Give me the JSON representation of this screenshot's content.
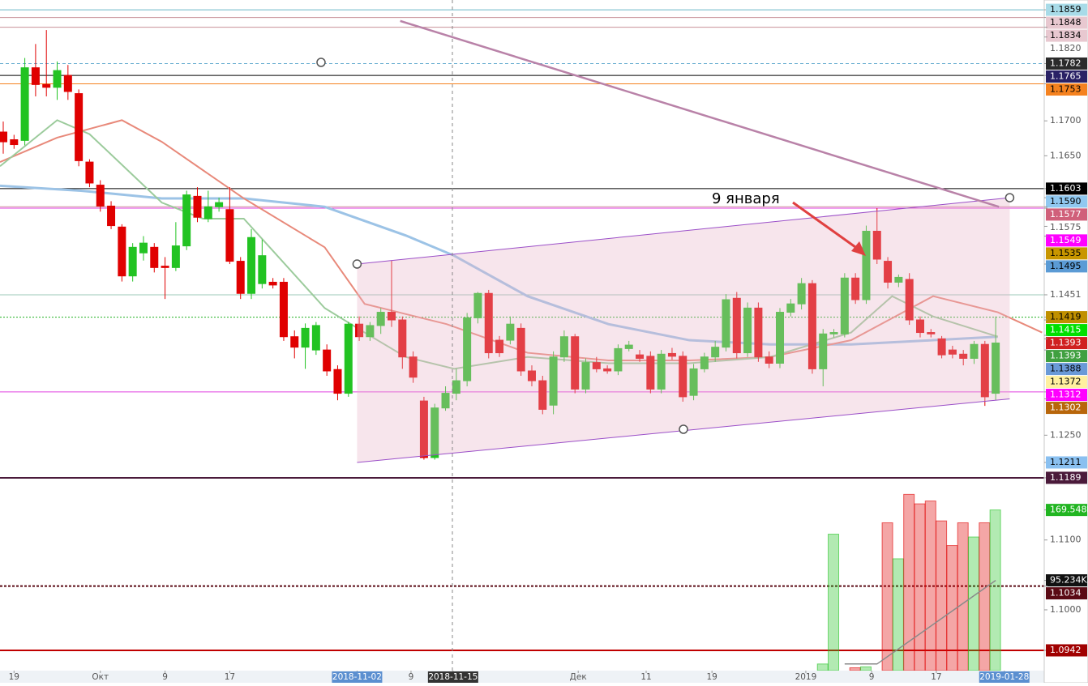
{
  "chart_data": {
    "type": "candlestick",
    "annotation": "9 января",
    "xlim": [
      -0.3,
      96.5
    ],
    "ylim": [
      1.0913,
      1.1873
    ],
    "up_color": "#22c322",
    "down_color": "#e00000",
    "xticks": [
      {
        "value": 1,
        "label": "19"
      },
      {
        "value": 9,
        "label": "Окт"
      },
      {
        "value": 15,
        "label": "9"
      },
      {
        "value": 21,
        "label": "17"
      },
      {
        "value": 32.8,
        "label": "2018-11-02",
        "bg": "#5b8fd0"
      },
      {
        "value": 37.8,
        "label": "9"
      },
      {
        "value": 41.7,
        "label": "2018-11-15",
        "bg": "#333333"
      },
      {
        "value": 53.3,
        "label": "Дек"
      },
      {
        "value": 59.6,
        "label": "11"
      },
      {
        "value": 65.7,
        "label": "19"
      },
      {
        "value": 74.4,
        "label": "2019"
      },
      {
        "value": 80.5,
        "label": "9"
      },
      {
        "value": 86.5,
        "label": "17"
      },
      {
        "value": 92.8,
        "label": "2019-01-28",
        "bg": "#5b8fd0"
      }
    ],
    "yticks": [
      {
        "value": 1.182,
        "label": "1.1820"
      },
      {
        "value": 1.17,
        "label": "1.1700"
      },
      {
        "value": 1.165,
        "label": "1.1650"
      },
      {
        "value": 1.125,
        "label": "1.1250"
      },
      {
        "value": 1.11,
        "label": "1.1100"
      },
      {
        "value": 1.1,
        "label": "1.1000"
      }
    ],
    "candles": {
      "open": [
        1.1684,
        1.1673,
        1.1672,
        1.1776,
        1.1752,
        1.1748,
        1.1765,
        1.1739,
        1.1641,
        1.1608,
        1.1578,
        1.1548,
        1.1478,
        1.1511,
        1.1519,
        1.1492,
        1.149,
        1.1521,
        1.1592,
        1.156,
        1.1577,
        1.1573,
        1.1499,
        1.1453,
        1.1467,
        1.1469,
        1.1469,
        1.1391,
        1.1376,
        1.1372,
        1.1372,
        1.1344,
        1.131,
        1.1409,
        1.1391,
        1.1407,
        1.1426,
        1.1415,
        1.1362,
        1.1299,
        1.1218,
        1.1289,
        1.131,
        1.1328,
        1.1418,
        1.1453,
        1.1386,
        1.1386,
        1.1403,
        1.1342,
        1.1328,
        1.1293,
        1.1362,
        1.1391,
        1.1316,
        1.1354,
        1.1345,
        1.1342,
        1.1374,
        1.1365,
        1.1363,
        1.1316,
        1.1367,
        1.1363,
        1.1307,
        1.1345,
        1.1362,
        1.1376,
        1.1446,
        1.1368,
        1.1432,
        1.1362,
        1.1353,
        1.1426,
        1.1438,
        1.1467,
        1.1345,
        1.1395,
        1.1395,
        1.1475,
        1.1444,
        1.1542,
        1.1499,
        1.1469,
        1.1473,
        1.1415,
        1.1397,
        1.1388,
        1.1372,
        1.1366,
        1.136,
        1.138,
        1.131
      ],
      "high": [
        1.1699,
        1.168,
        1.179,
        1.181,
        1.183,
        1.1785,
        1.178,
        1.1745,
        1.1645,
        1.1615,
        1.1585,
        1.1552,
        1.1525,
        1.1535,
        1.1525,
        1.1505,
        1.1555,
        1.16,
        1.1605,
        1.16,
        1.159,
        1.1605,
        1.1505,
        1.1545,
        1.153,
        1.1475,
        1.1475,
        1.14,
        1.141,
        1.1412,
        1.138,
        1.135,
        1.1412,
        1.142,
        1.1412,
        1.1432,
        1.15,
        1.142,
        1.137,
        1.1305,
        1.1295,
        1.132,
        1.1345,
        1.1425,
        1.1455,
        1.1458,
        1.1392,
        1.142,
        1.141,
        1.135,
        1.1335,
        1.137,
        1.14,
        1.1395,
        1.136,
        1.1362,
        1.135,
        1.138,
        1.1385,
        1.1372,
        1.137,
        1.1372,
        1.1375,
        1.137,
        1.1352,
        1.1368,
        1.1385,
        1.1452,
        1.1455,
        1.144,
        1.144,
        1.137,
        1.1432,
        1.1445,
        1.1475,
        1.1472,
        1.1402,
        1.1402,
        1.1482,
        1.1482,
        1.155,
        1.1575,
        1.1505,
        1.148,
        1.1482,
        1.142,
        1.1402,
        1.1392,
        1.1378,
        1.1372,
        1.1385,
        1.1385,
        1.142
      ],
      "low": [
        1.1653,
        1.166,
        1.1665,
        1.1735,
        1.1735,
        1.173,
        1.173,
        1.1635,
        1.1605,
        1.157,
        1.1545,
        1.147,
        1.147,
        1.15,
        1.1483,
        1.1445,
        1.1485,
        1.1515,
        1.1555,
        1.1555,
        1.157,
        1.1495,
        1.1445,
        1.1445,
        1.146,
        1.146,
        1.1385,
        1.136,
        1.1345,
        1.1365,
        1.1335,
        1.13,
        1.1305,
        1.1385,
        1.1385,
        1.1395,
        1.1405,
        1.1345,
        1.1325,
        1.1215,
        1.1215,
        1.1285,
        1.13,
        1.132,
        1.141,
        1.136,
        1.1362,
        1.138,
        1.1335,
        1.132,
        1.128,
        1.128,
        1.1355,
        1.131,
        1.131,
        1.134,
        1.1338,
        1.1336,
        1.137,
        1.1355,
        1.131,
        1.131,
        1.1358,
        1.1298,
        1.13,
        1.134,
        1.1355,
        1.137,
        1.136,
        1.1362,
        1.1355,
        1.1346,
        1.1346,
        1.142,
        1.143,
        1.1338,
        1.132,
        1.139,
        1.139,
        1.1438,
        1.1438,
        1.1495,
        1.146,
        1.1462,
        1.1408,
        1.139,
        1.139,
        1.136,
        1.136,
        1.135,
        1.1352,
        1.1292,
        1.13
      ],
      "close": [
        1.167,
        1.1666,
        1.1776,
        1.1752,
        1.1748,
        1.1772,
        1.1742,
        1.1643,
        1.1611,
        1.1578,
        1.155,
        1.1478,
        1.1519,
        1.1525,
        1.149,
        1.149,
        1.1521,
        1.1594,
        1.1562,
        1.1577,
        1.1583,
        1.1499,
        1.1453,
        1.1533,
        1.1507,
        1.1465,
        1.1391,
        1.1376,
        1.1403,
        1.1407,
        1.1342,
        1.131,
        1.1409,
        1.1391,
        1.1407,
        1.1426,
        1.1415,
        1.1362,
        1.1333,
        1.1218,
        1.1289,
        1.131,
        1.1328,
        1.1418,
        1.1453,
        1.1368,
        1.1368,
        1.1409,
        1.1342,
        1.1328,
        1.1287,
        1.1362,
        1.1391,
        1.1316,
        1.1354,
        1.1345,
        1.1342,
        1.1374,
        1.1379,
        1.136,
        1.1316,
        1.1366,
        1.1363,
        1.1305,
        1.1345,
        1.1362,
        1.1376,
        1.1444,
        1.1368,
        1.1432,
        1.1362,
        1.1353,
        1.1426,
        1.1438,
        1.1467,
        1.1345,
        1.1395,
        1.1397,
        1.1475,
        1.1444,
        1.1542,
        1.1502,
        1.1469,
        1.1476,
        1.1415,
        1.1397,
        1.1395,
        1.1365,
        1.1366,
        1.136,
        1.138,
        1.1305,
        1.1382
      ]
    },
    "volume": {
      "ylim": [
        0,
        200000
      ],
      "values": [
        null,
        null,
        null,
        null,
        null,
        null,
        null,
        null,
        null,
        null,
        null,
        null,
        null,
        null,
        null,
        null,
        null,
        null,
        null,
        null,
        null,
        null,
        null,
        null,
        null,
        null,
        null,
        null,
        null,
        null,
        null,
        null,
        null,
        null,
        null,
        null,
        null,
        null,
        null,
        null,
        null,
        null,
        null,
        null,
        null,
        null,
        null,
        null,
        null,
        null,
        null,
        null,
        null,
        null,
        null,
        null,
        null,
        null,
        null,
        null,
        null,
        null,
        null,
        null,
        null,
        null,
        null,
        null,
        null,
        null,
        null,
        null,
        null,
        null,
        null,
        null,
        7000,
        144000,
        null,
        3000,
        4000,
        null,
        156000,
        118000,
        186000,
        176000,
        179000,
        158000,
        132000,
        156000,
        141000,
        156000,
        169548
      ],
      "tags": [
        {
          "value": 169548,
          "label": "169.548K",
          "bg": "#21b521"
        },
        {
          "value": 95234,
          "label": "95.234K",
          "bg": "#111111"
        }
      ],
      "ma": {
        "x": [
          78,
          81,
          92
        ],
        "values": [
          7000,
          7000,
          95234
        ],
        "color": "#8a8a8a"
      }
    },
    "levels": [
      {
        "value": 1.1859,
        "bg": "#a8dbe8",
        "line": {
          "color": "#6ab7c8",
          "width": 1
        }
      },
      {
        "value": 1.1848,
        "bg": "#e8c8d0",
        "line": {
          "color": "#c89098",
          "width": 1
        }
      },
      {
        "value": 1.1834,
        "bg": "#e8c8d0",
        "line": {
          "color": "#c89098",
          "width": 1
        }
      },
      {
        "value": 1.1782,
        "bg": "#2b2b2b",
        "line": {
          "color": "#6aaed0",
          "width": 1,
          "dash": "4 3"
        }
      },
      {
        "value": 1.1765,
        "bg": "#2a2266",
        "line": {
          "color": "#000000",
          "width": 1
        }
      },
      {
        "value": 1.1753,
        "bg": "#f5821f",
        "line": {
          "color": "#f5821f",
          "width": 1
        }
      },
      {
        "value": 1.1603,
        "bg": "#000000",
        "line": {
          "color": "#000000",
          "width": 1
        }
      },
      {
        "value": 1.159,
        "label": "1.1590",
        "bg": "#90c8f0"
      },
      {
        "value": 1.1577,
        "bg": "#d0607a",
        "line": {
          "color": "#d090a0",
          "width": 1
        }
      },
      {
        "value": 1.1575,
        "line": {
          "color": "#e040e0",
          "width": 1
        }
      },
      {
        "value": 1.1549,
        "bg": "#ff00ff"
      },
      {
        "value": 1.1535,
        "bg": "#c89600"
      },
      {
        "value": 1.1495,
        "bg": "#5b9bd5"
      },
      {
        "value": 1.1451,
        "line": {
          "color": "#9cc8b8",
          "width": 1
        }
      },
      {
        "value": 1.1419,
        "bg": "#c09000",
        "line": {
          "color": "#20b020",
          "width": 1,
          "dash": "2 2"
        }
      },
      {
        "value": 1.1415,
        "bg": "#00e000"
      },
      {
        "value": 1.1393,
        "bg": "#d02020"
      },
      {
        "value": 1.1393,
        "bg": "#40a040"
      },
      {
        "value": 1.1388,
        "bg": "#6a9ad8"
      },
      {
        "value": 1.1372,
        "bg": "#fff0a0"
      },
      {
        "value": 1.1312,
        "bg": "#ff00ff",
        "line": {
          "color": "#e040e0",
          "width": 1
        }
      },
      {
        "value": 1.1302,
        "bg": "#b8660b"
      },
      {
        "value": 1.1211,
        "bg": "#8ac0f0"
      },
      {
        "value": 1.1189,
        "bg": "#4a1a3a",
        "line": {
          "color": "#4a1a3a",
          "width": 2
        }
      },
      {
        "value": 1.1034,
        "bg": "#5a0a14",
        "line": {
          "color": "#5a0a14",
          "width": 2,
          "dash": "3 2"
        }
      },
      {
        "value": 1.0942,
        "bg": "#a00000",
        "line": {
          "color": "#c00000",
          "width": 2
        }
      }
    ],
    "indicators": [
      {
        "color": "#9cc3e6",
        "width": 3,
        "x": [
          -0.3,
          7.2,
          14.7,
          22.3,
          29.8,
          37.3,
          41.8,
          48.6,
          56.1,
          63.6,
          71.1,
          78.6,
          86.2,
          92.2
        ],
        "values": [
          1.1607,
          1.16,
          1.1589,
          1.1589,
          1.1577,
          1.1536,
          1.1507,
          1.1449,
          1.1409,
          1.1386,
          1.138,
          1.138,
          1.1386,
          1.1391
        ]
      },
      {
        "color": "#e8897a",
        "width": 2,
        "x": [
          -0.3,
          5,
          11,
          14.7,
          22.3,
          29.8,
          33.5,
          41.1,
          48.6,
          56.1,
          63.6,
          71.1,
          78.6,
          86.2,
          92.2,
          96.3
        ],
        "values": [
          1.1641,
          1.1676,
          1.1701,
          1.167,
          1.1589,
          1.1519,
          1.1438,
          1.1409,
          1.1368,
          1.1357,
          1.1357,
          1.1362,
          1.1386,
          1.1449,
          1.1426,
          1.1397
        ]
      },
      {
        "color": "#9ccb9c",
        "width": 2,
        "x": [
          -0.3,
          5,
          8,
          14.7,
          18.5,
          22.3,
          29.8,
          33.5,
          37.3,
          41.8,
          48.6,
          56.1,
          63.6,
          71.1,
          78.6,
          82.4,
          86.2,
          92.2
        ],
        "values": [
          1.1635,
          1.1701,
          1.1681,
          1.1583,
          1.156,
          1.156,
          1.1432,
          1.1397,
          1.1362,
          1.1345,
          1.1362,
          1.1353,
          1.1353,
          1.1362,
          1.1397,
          1.1449,
          1.142,
          1.1391
        ]
      }
    ],
    "channel": {
      "x": [
        32.8,
        93.3
      ],
      "upper": [
        1.1495,
        1.159
      ],
      "lower": [
        1.1211,
        1.1302
      ],
      "color": "#9b4fc8",
      "fill": "#e8b4c8"
    },
    "trendline": {
      "x": [
        36.8,
        92.3
      ],
      "values": [
        1.1843,
        1.1577
      ],
      "color": "#b982a8"
    }
  }
}
